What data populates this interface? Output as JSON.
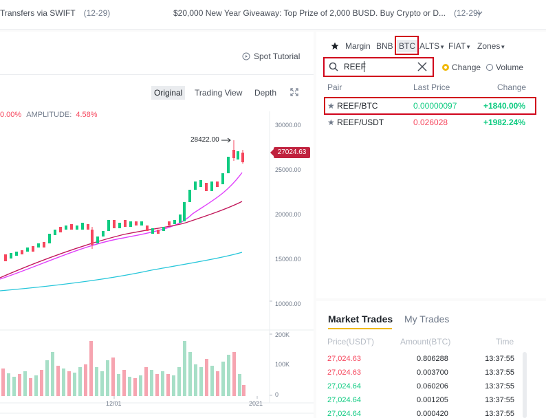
{
  "topbar": {
    "ann1_text": "Transfers via SWIFT",
    "ann1_date": "(12-29)",
    "ann2_text": "$20,000 New Year Giveaway: Top Prize of 2,000 BUSD. Buy Crypto or D...",
    "ann2_date": "(12-29)"
  },
  "chart": {
    "spot_tutorial": "Spot Tutorial",
    "tabs": [
      "Original",
      "Trading View",
      "Depth"
    ],
    "active_tab": "Original",
    "stats": {
      "change": "0.00%",
      "amplitude_label": "AMPLITUDE:",
      "amplitude_value": "4.58%"
    },
    "price_axis": [
      "30000.00",
      "25000.00",
      "20000.00",
      "15000.00",
      "10000.00"
    ],
    "volume_axis": [
      "200K",
      "100K",
      "0"
    ],
    "x_axis": [
      "12/01",
      "2021"
    ],
    "high_annotation": "28422.00",
    "last_price_tag": "27024.63"
  },
  "market": {
    "star_label": "favorites",
    "segments": [
      "Margin",
      "BNB",
      "BTC",
      "ALTS",
      "FIAT",
      "Zones"
    ],
    "active_segment": "BTC",
    "search_value": "REEF",
    "sort_change": "Change",
    "sort_volume": "Volume",
    "columns": [
      "Pair",
      "Last Price",
      "Change"
    ],
    "pairs": [
      {
        "pair": "REEF/BTC",
        "price": "0.00000097",
        "change": "+1840.00%",
        "price_color": "#0ecb81"
      },
      {
        "pair": "REEF/USDT",
        "price": "0.026028",
        "change": "+1982.24%",
        "price_color": "#f6465d"
      }
    ]
  },
  "trades": {
    "tab_market": "Market Trades",
    "tab_my": "My Trades",
    "columns": [
      "Price(USDT)",
      "Amount(BTC)",
      "Time"
    ],
    "rows": [
      {
        "price": "27,024.63",
        "amount": "0.806288",
        "time": "13:37:55",
        "color": "#f6465d"
      },
      {
        "price": "27,024.63",
        "amount": "0.003700",
        "time": "13:37:55",
        "color": "#f6465d"
      },
      {
        "price": "27,024.64",
        "amount": "0.060206",
        "time": "13:37:55",
        "color": "#0ecb81"
      },
      {
        "price": "27,024.64",
        "amount": "0.001205",
        "time": "13:37:55",
        "color": "#0ecb81"
      },
      {
        "price": "27,024.64",
        "amount": "0.000420",
        "time": "13:37:55",
        "color": "#0ecb81"
      }
    ]
  }
}
